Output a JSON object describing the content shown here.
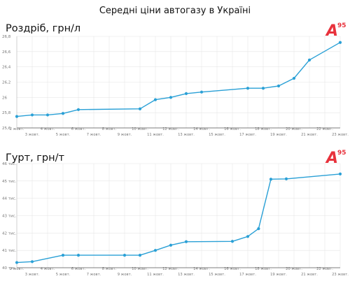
{
  "page": {
    "title": "Середні ціни автогазу в Україні"
  },
  "logo": {
    "text": "A",
    "superscript": "95",
    "color": "#e8323c"
  },
  "colors": {
    "line": "#2aa0d6",
    "grid": "#e6e6e6",
    "axis": "#555555"
  },
  "chart_data": [
    {
      "type": "line",
      "title": "Роздріб, грн/л",
      "xlabel": "",
      "ylabel": "",
      "ylim": [
        25.6,
        26.8
      ],
      "yticks": [
        25.6,
        25.8,
        26,
        26.2,
        26.4,
        26.6,
        26.8
      ],
      "ytick_labels": [
        "25,6",
        "25,8",
        "26",
        "26,2",
        "26,4",
        "26,6",
        "26,8"
      ],
      "xlim": [
        2,
        23
      ],
      "xticks_upper": [
        2,
        4,
        6,
        8,
        10,
        12,
        14,
        16,
        18,
        20,
        22
      ],
      "xticks_lower": [
        3,
        5,
        7,
        9,
        11,
        13,
        15,
        17,
        19,
        21,
        23
      ],
      "xtick_suffix": " жовт.",
      "grid": true,
      "series": [
        {
          "x": [
            2,
            3,
            4,
            5,
            6,
            10,
            11,
            12,
            13,
            14,
            17,
            18,
            19,
            20,
            21,
            23
          ],
          "y": [
            25.75,
            25.77,
            25.77,
            25.79,
            25.84,
            25.85,
            25.97,
            26.0,
            26.05,
            26.07,
            26.12,
            26.12,
            26.15,
            26.25,
            26.49,
            26.72
          ]
        }
      ]
    },
    {
      "type": "line",
      "title": "Гурт, грн/т",
      "xlabel": "",
      "ylabel": "",
      "ylim": [
        40,
        46
      ],
      "yticks": [
        40,
        41,
        42,
        43,
        44,
        45,
        46
      ],
      "ytick_labels": [
        "40 тис.",
        "41 тис.",
        "42 тис.",
        "43 тис.",
        "44 тис.",
        "45 тис.",
        "46 тис."
      ],
      "xlim": [
        2,
        23
      ],
      "xticks_upper": [
        2,
        4,
        6,
        8,
        10,
        12,
        14,
        16,
        18,
        20,
        22
      ],
      "xticks_lower": [
        3,
        5,
        7,
        9,
        11,
        13,
        15,
        17,
        19,
        21,
        23
      ],
      "xtick_suffix": " жовт.",
      "grid": true,
      "series": [
        {
          "x": [
            2,
            3,
            5,
            6,
            9,
            10,
            11,
            12,
            13,
            16,
            17,
            17.7,
            18.5,
            19.5,
            23
          ],
          "y": [
            40.3,
            40.35,
            40.72,
            40.72,
            40.72,
            40.72,
            41.0,
            41.3,
            41.5,
            41.52,
            41.8,
            42.25,
            45.1,
            45.12,
            45.4
          ]
        }
      ]
    }
  ]
}
